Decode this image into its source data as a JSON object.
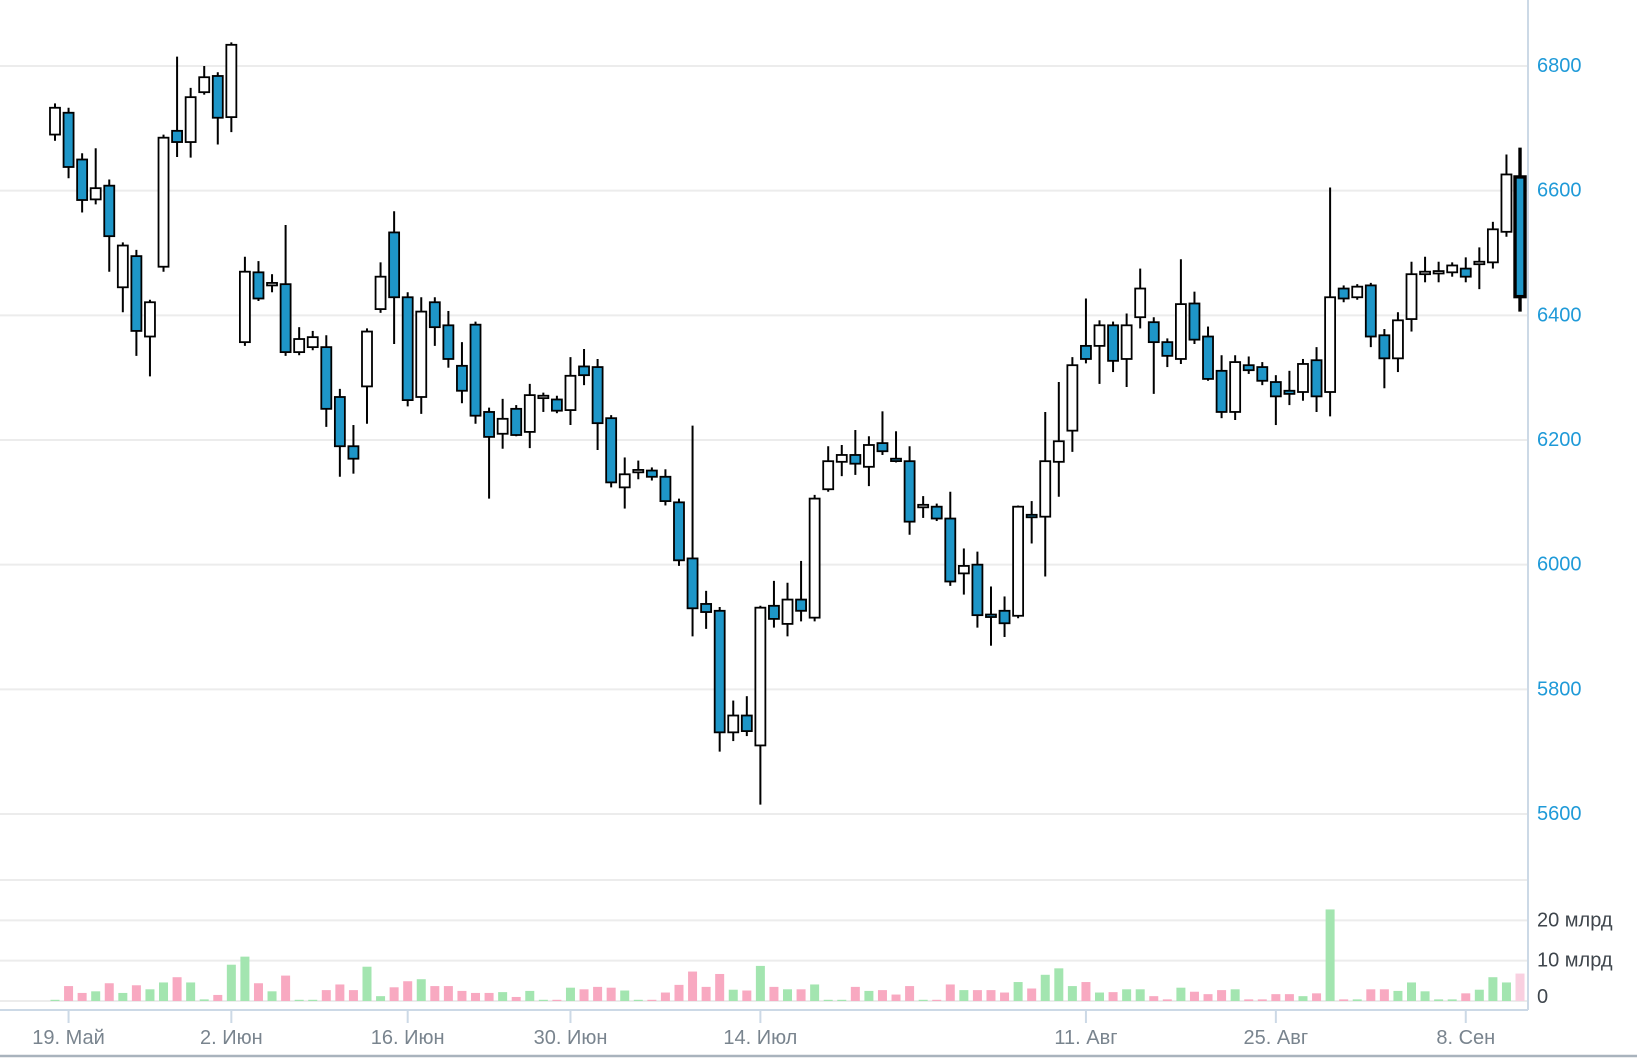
{
  "chart_data": {
    "type": "candlestick",
    "title": "",
    "price_axis": {
      "side": "right",
      "tick_values": [
        6800,
        6600,
        6400,
        6200,
        6000,
        5800,
        5600
      ],
      "tick_labels": [
        "6800",
        "6600",
        "6400",
        "6200",
        "6000",
        "5800",
        "5600"
      ]
    },
    "volume_axis": {
      "side": "right",
      "tick_values": [
        20,
        10,
        0
      ],
      "tick_labels": [
        "20 млрд",
        "10 млрд",
        "0"
      ],
      "grid_values": [
        30,
        20,
        10,
        0
      ]
    },
    "x_ticks": [
      {
        "candle_index": 1,
        "label": "19. Май"
      },
      {
        "candle_index": 13,
        "label": "2. Июн"
      },
      {
        "candle_index": 26,
        "label": "16. Июн"
      },
      {
        "candle_index": 38,
        "label": "30. Июн"
      },
      {
        "candle_index": 52,
        "label": "14. Июл"
      },
      {
        "candle_index": 76,
        "label": "11. Авг"
      },
      {
        "candle_index": 90,
        "label": "25. Авг"
      },
      {
        "candle_index": 104,
        "label": "8. Сен"
      }
    ],
    "candles_ohlc": [
      [
        6690,
        6740,
        6680,
        6733
      ],
      [
        6725,
        6733,
        6620,
        6638
      ],
      [
        6650,
        6660,
        6565,
        6585
      ],
      [
        6586,
        6668,
        6578,
        6604
      ],
      [
        6608,
        6618,
        6470,
        6527
      ],
      [
        6445,
        6517,
        6405,
        6512
      ],
      [
        6495,
        6505,
        6335,
        6375
      ],
      [
        6366,
        6425,
        6302,
        6421
      ],
      [
        6478,
        6690,
        6470,
        6685
      ],
      [
        6696,
        6815,
        6654,
        6678
      ],
      [
        6678,
        6765,
        6653,
        6750
      ],
      [
        6758,
        6800,
        6754,
        6782
      ],
      [
        6784,
        6790,
        6674,
        6717
      ],
      [
        6718,
        6838,
        6694,
        6834
      ],
      [
        6357,
        6494,
        6351,
        6470
      ],
      [
        6469,
        6487,
        6423,
        6427
      ],
      [
        6448,
        6466,
        6437,
        6452
      ],
      [
        6450,
        6545,
        6335,
        6341
      ],
      [
        6341,
        6381,
        6336,
        6362
      ],
      [
        6349,
        6375,
        6344,
        6365
      ],
      [
        6349,
        6368,
        6221,
        6250
      ],
      [
        6269,
        6282,
        6141,
        6190
      ],
      [
        6190,
        6224,
        6146,
        6170
      ],
      [
        6286,
        6379,
        6226,
        6374
      ],
      [
        6410,
        6485,
        6404,
        6462
      ],
      [
        6533,
        6567,
        6354,
        6429
      ],
      [
        6429,
        6437,
        6254,
        6264
      ],
      [
        6269,
        6429,
        6242,
        6406
      ],
      [
        6421,
        6429,
        6351,
        6381
      ],
      [
        6384,
        6407,
        6316,
        6330
      ],
      [
        6319,
        6357,
        6259,
        6279
      ],
      [
        6385,
        6390,
        6226,
        6239
      ],
      [
        6245,
        6252,
        6106,
        6205
      ],
      [
        6210,
        6266,
        6186,
        6234
      ],
      [
        6250,
        6256,
        6206,
        6208
      ],
      [
        6213,
        6290,
        6187,
        6272
      ],
      [
        6270,
        6276,
        6245,
        6271
      ],
      [
        6265,
        6271,
        6243,
        6247
      ],
      [
        6248,
        6333,
        6224,
        6303
      ],
      [
        6318,
        6346,
        6288,
        6304
      ],
      [
        6317,
        6330,
        6184,
        6227
      ],
      [
        6235,
        6240,
        6124,
        6132
      ],
      [
        6124,
        6172,
        6090,
        6145
      ],
      [
        6151,
        6167,
        6137,
        6152
      ],
      [
        6151,
        6156,
        6135,
        6141
      ],
      [
        6141,
        6153,
        6095,
        6102
      ],
      [
        6100,
        6106,
        5998,
        6007
      ],
      [
        6010,
        6223,
        5885,
        5930
      ],
      [
        5937,
        5958,
        5897,
        5924
      ],
      [
        5926,
        5932,
        5700,
        5731
      ],
      [
        5731,
        5782,
        5717,
        5758
      ],
      [
        5758,
        5789,
        5725,
        5733
      ],
      [
        5710,
        5934,
        5615,
        5931
      ],
      [
        5934,
        5974,
        5899,
        5913
      ],
      [
        5905,
        5971,
        5885,
        5944
      ],
      [
        5944,
        6006,
        5909,
        5926
      ],
      [
        5915,
        6112,
        5909,
        6106
      ],
      [
        6121,
        6190,
        6117,
        6166
      ],
      [
        6165,
        6192,
        6142,
        6176
      ],
      [
        6176,
        6216,
        6144,
        6162
      ],
      [
        6157,
        6206,
        6126,
        6192
      ],
      [
        6195,
        6246,
        6176,
        6182
      ],
      [
        6170,
        6214,
        6164,
        6167
      ],
      [
        6166,
        6190,
        6048,
        6069
      ],
      [
        6092,
        6110,
        6075,
        6096
      ],
      [
        6093,
        6098,
        6070,
        6074
      ],
      [
        6074,
        6117,
        5966,
        5973
      ],
      [
        5986,
        6026,
        5952,
        5998
      ],
      [
        6000,
        6021,
        5899,
        5919
      ],
      [
        5920,
        5965,
        5870,
        5916
      ],
      [
        5926,
        5949,
        5884,
        5906
      ],
      [
        5918,
        6095,
        5914,
        6093
      ],
      [
        6080,
        6102,
        6034,
        6076
      ],
      [
        6077,
        6245,
        5981,
        6166
      ],
      [
        6165,
        6293,
        6109,
        6198
      ],
      [
        6215,
        6333,
        6181,
        6320
      ],
      [
        6351,
        6427,
        6323,
        6330
      ],
      [
        6351,
        6392,
        6290,
        6384
      ],
      [
        6384,
        6390,
        6309,
        6327
      ],
      [
        6330,
        6403,
        6285,
        6384
      ],
      [
        6397,
        6475,
        6379,
        6443
      ],
      [
        6389,
        6397,
        6274,
        6357
      ],
      [
        6357,
        6363,
        6317,
        6335
      ],
      [
        6330,
        6490,
        6322,
        6418
      ],
      [
        6419,
        6438,
        6354,
        6361
      ],
      [
        6366,
        6382,
        6295,
        6298
      ],
      [
        6311,
        6336,
        6235,
        6245
      ],
      [
        6245,
        6336,
        6232,
        6325
      ],
      [
        6320,
        6334,
        6306,
        6312
      ],
      [
        6317,
        6325,
        6288,
        6295
      ],
      [
        6293,
        6304,
        6224,
        6270
      ],
      [
        6279,
        6311,
        6256,
        6274
      ],
      [
        6277,
        6330,
        6263,
        6322
      ],
      [
        6328,
        6349,
        6245,
        6270
      ],
      [
        6277,
        6605,
        6238,
        6429
      ],
      [
        6443,
        6448,
        6421,
        6427
      ],
      [
        6429,
        6450,
        6425,
        6446
      ],
      [
        6448,
        6452,
        6349,
        6366
      ],
      [
        6368,
        6378,
        6283,
        6331
      ],
      [
        6331,
        6405,
        6309,
        6392
      ],
      [
        6394,
        6486,
        6374,
        6466
      ],
      [
        6466,
        6494,
        6453,
        6470
      ],
      [
        6468,
        6486,
        6453,
        6471
      ],
      [
        6469,
        6485,
        6462,
        6480
      ],
      [
        6475,
        6493,
        6453,
        6462
      ],
      [
        6482,
        6509,
        6442,
        6486
      ],
      [
        6485,
        6550,
        6475,
        6538
      ],
      [
        6534,
        6658,
        6526,
        6626
      ],
      [
        6622,
        6669,
        6406,
        6430
      ]
    ],
    "volumes_bln": [
      0.3,
      3.7,
      2.0,
      2.4,
      4.4,
      2.0,
      3.9,
      2.9,
      4.6,
      5.9,
      4.6,
      0.4,
      1.5,
      9.0,
      11.0,
      4.4,
      2.4,
      6.3,
      0.3,
      0.3,
      2.7,
      4.1,
      2.7,
      8.5,
      1.2,
      3.4,
      4.9,
      5.4,
      3.7,
      3.7,
      2.5,
      2.0,
      2.0,
      2.2,
      1.0,
      2.5,
      0.3,
      0.3,
      3.3,
      2.9,
      3.5,
      3.3,
      2.6,
      0.3,
      0.3,
      2.1,
      4.0,
      7.3,
      3.5,
      6.7,
      2.8,
      2.6,
      8.7,
      3.5,
      2.9,
      2.9,
      4.1,
      0.3,
      0.3,
      3.5,
      2.5,
      2.7,
      1.6,
      3.7,
      0.3,
      0.3,
      4.1,
      2.7,
      2.7,
      2.7,
      2.1,
      4.7,
      3.1,
      6.5,
      8.1,
      3.7,
      4.7,
      2.1,
      2.2,
      2.9,
      2.9,
      1.2,
      0.4,
      3.3,
      2.3,
      1.7,
      2.7,
      2.9,
      0.4,
      0.4,
      1.7,
      1.7,
      1.2,
      1.9,
      22.7,
      0.4,
      0.4,
      2.9,
      2.9,
      2.5,
      4.6,
      2.4,
      0.4,
      0.4,
      1.9,
      2.8,
      5.9,
      4.6,
      6.8
    ],
    "last_candle_highlighted": true,
    "grid": "horizontal",
    "legend": "none",
    "colors": {
      "up_fill": "#ffffff",
      "down_fill": "#1e96c8",
      "candle_stroke": "#000000",
      "vol_up": "#a3e5b0",
      "vol_down": "#f8a9c1",
      "vol_last": "#f9d0e0",
      "grid": "#ececec",
      "axis": "#ccd9e6",
      "price_label": "#1f9ad8",
      "vol_label": "#3f464d",
      "date_label": "#79848e",
      "bottom_border": "#a9b3bd"
    }
  }
}
